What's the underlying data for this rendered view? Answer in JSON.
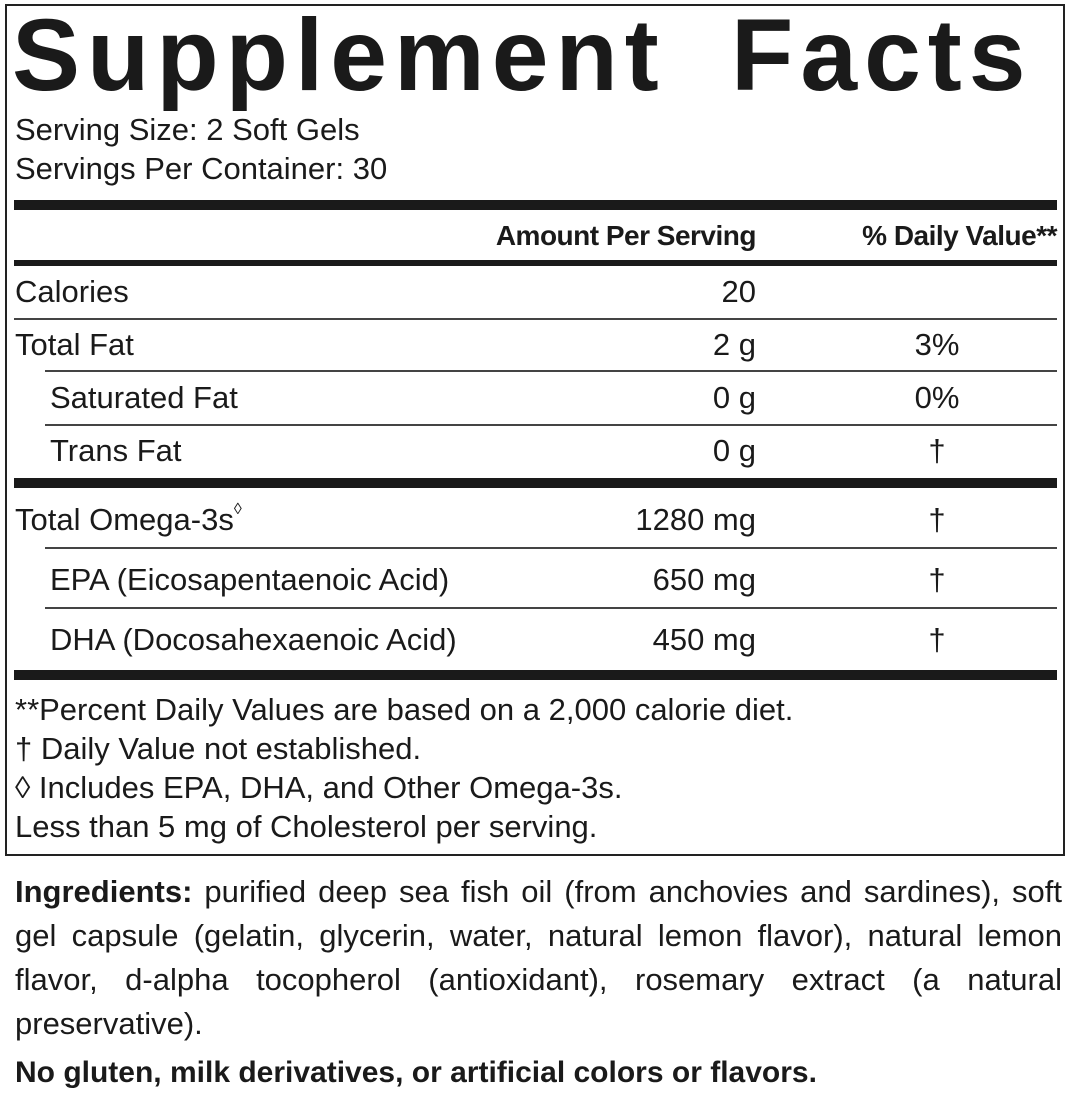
{
  "title": "Supplement Facts",
  "serving_size": "Serving Size: 2 Soft Gels",
  "servings_per_container": "Servings Per Container: 30",
  "header": {
    "amount": "Amount Per Serving",
    "daily_value": "% Daily Value**"
  },
  "rows": [
    {
      "label": "Calories",
      "amount": "20",
      "dv": ""
    },
    {
      "label": "Total Fat",
      "amount": "2 g",
      "dv": "3%"
    },
    {
      "label": "Saturated Fat",
      "amount": "0 g",
      "dv": "0%"
    },
    {
      "label": "Trans Fat",
      "amount": "0 g",
      "dv": "†"
    },
    {
      "label": "Total Omega-3s",
      "mark": "◊",
      "amount": "1280 mg",
      "dv": "†"
    },
    {
      "label": "EPA (Eicosapentaenoic Acid)",
      "amount": "650 mg",
      "dv": "†"
    },
    {
      "label": "DHA (Docosahexaenoic Acid)",
      "amount": "450 mg",
      "dv": "†"
    }
  ],
  "footnotes": [
    "**Percent Daily Values are based on a 2,000 calorie diet.",
    "† Daily Value not established.",
    "◊ Includes EPA, DHA, and Other Omega-3s.",
    "Less than 5 mg of Cholesterol per serving."
  ],
  "ingredients": {
    "label": "Ingredients:",
    "text": "purified deep sea fish oil (from anchovies and sardines), soft gel capsule (gelatin, glycerin, water, natural lemon flavor), natural lemon flavor, d-alpha tocopherol (antioxidant), rosemary extract (a natural preservative)."
  },
  "claim": "No gluten, milk derivatives, or artificial colors or flavors."
}
